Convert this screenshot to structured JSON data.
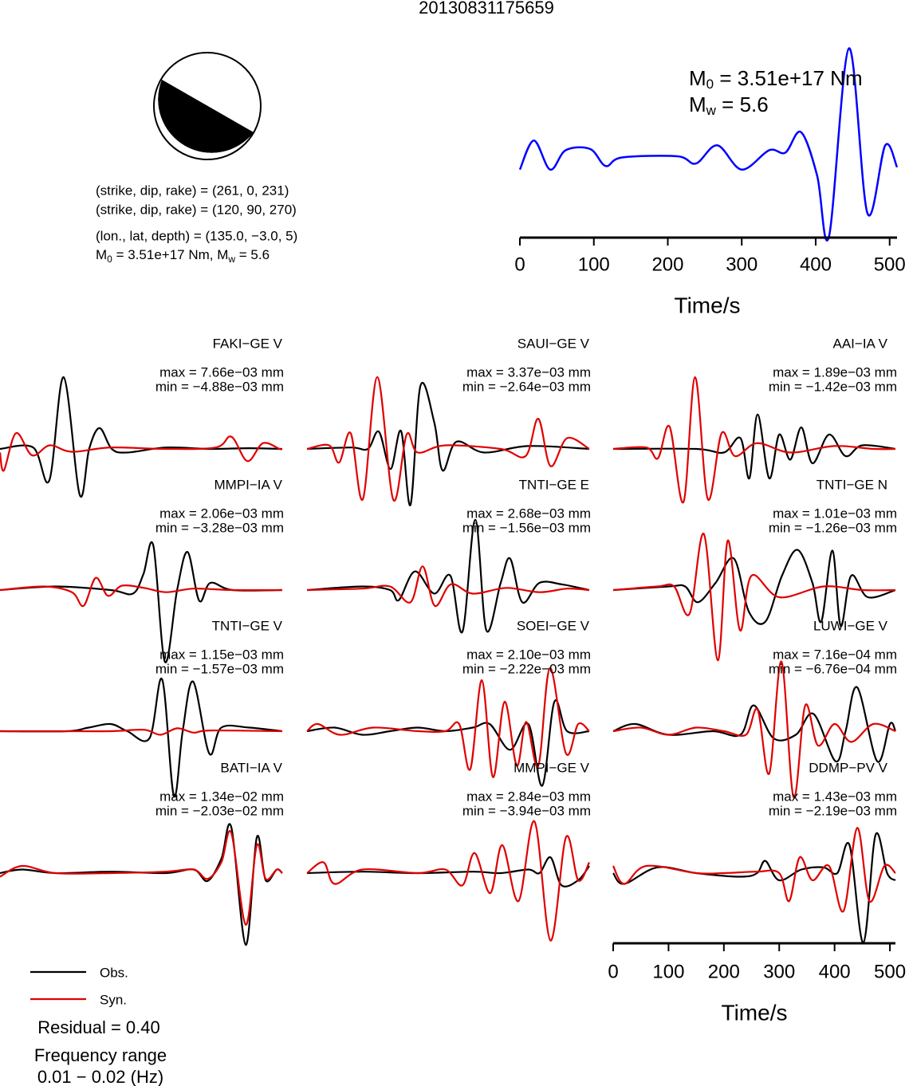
{
  "title": "20130831175659",
  "mechanism": {
    "lines": [
      "(strike, dip, rake) = (261, 0, 231)",
      "(strike, dip, rake) = (120, 90, 270)",
      "(lon., lat, depth) = (135.0, −3.0, 5)"
    ],
    "moment_parts": [
      "M",
      "0",
      " = 3.51e+17 Nm, M",
      "w",
      " = 5.6"
    ]
  },
  "chart_data": [
    {
      "type": "line",
      "annotation": [
        [
          "M",
          "0",
          " = 3.51e+17 Nm"
        ],
        [
          "M",
          "w",
          " = 5.6"
        ]
      ],
      "color": "#0000ff",
      "x": [
        0,
        19,
        41,
        62,
        95,
        116,
        138,
        213,
        238,
        267,
        300,
        337,
        359,
        380,
        402,
        418,
        445,
        470,
        494,
        510
      ],
      "values": [
        0,
        0.24,
        0,
        0.16,
        0.17,
        0.03,
        0.1,
        0.11,
        0.05,
        0.2,
        0,
        0.16,
        0.14,
        0.31,
        -0.05,
        -0.55,
        1.0,
        -0.36,
        0.2,
        0.02
      ],
      "xlim": [
        0,
        510
      ],
      "ylim": [
        -0.6,
        1.05
      ],
      "xticks": [
        0,
        100,
        200,
        300,
        400,
        500
      ],
      "xlabel": "Time/s"
    },
    {
      "type": "waveform",
      "xlim": [
        0,
        510
      ],
      "xticks": [
        0,
        100,
        200,
        300,
        400,
        500
      ],
      "xlabel": "Time/s",
      "ylim": [
        -1.5,
        1.5
      ],
      "legend": [
        {
          "name": "Obs.",
          "color": "#000000"
        },
        {
          "name": "Syn.",
          "color": "#e00000"
        }
      ],
      "residual": "Residual = 0.40",
      "frequency": [
        "Frequency range",
        "0.01 − 0.02 (Hz)"
      ],
      "panels": [
        {
          "station": "FAKI−GE V",
          "max": "max = 7.66e−03 mm",
          "min": "min = −4.88e−03 mm",
          "obs": {
            "x": [
              0,
              60,
              89,
              115,
              144,
              161,
              180,
              202,
              230,
              300,
              380,
              450,
              510
            ],
            "values": [
              0,
              0.02,
              -0.44,
              1.0,
              -0.64,
              0,
              0.29,
              0,
              -0.05,
              0.02,
              0,
              0.01,
              0
            ]
          },
          "syn": {
            "x": [
              0,
              7,
              29,
              58,
              90,
              130,
              200,
              300,
              390,
              418,
              447,
              475,
              505,
              510
            ],
            "values": [
              -0.05,
              -0.3,
              0.22,
              -0.09,
              0.05,
              -0.04,
              0.02,
              0,
              0.02,
              0.17,
              -0.17,
              0.08,
              0,
              0
            ]
          }
        },
        {
          "station": "SAUI−GE V",
          "max": "max = 3.37e−03 mm",
          "min": "min = −2.64e−03 mm",
          "obs": {
            "x": [
              0,
              80,
              110,
              130,
              151,
              170,
              187,
              205,
              230,
              245,
              270,
              320,
              400,
              510
            ],
            "values": [
              0,
              0.02,
              0,
              0.24,
              -0.28,
              0.25,
              -0.78,
              0.88,
              0.37,
              -0.3,
              0.1,
              -0.05,
              0.04,
              0
            ]
          },
          "syn": {
            "x": [
              0,
              40,
              58,
              79,
              101,
              127,
              156,
              180,
              200,
              250,
              350,
              395,
              418,
              440,
              470,
              510
            ],
            "values": [
              0,
              0.05,
              -0.19,
              0.22,
              -0.7,
              1.0,
              -0.71,
              0.2,
              -0.05,
              0.05,
              0,
              -0.1,
              0.42,
              -0.24,
              0.15,
              0
            ]
          }
        },
        {
          "station": "AAI−IA V",
          "max": "max = 1.89e−03 mm",
          "min": "min = −1.42e−03 mm",
          "obs": {
            "x": [
              0,
              150,
              200,
              230,
              246,
              261,
              282,
              300,
              320,
              340,
              360,
              390,
              420,
              450,
              510
            ],
            "values": [
              0,
              0,
              -0.05,
              0.15,
              -0.41,
              0.48,
              -0.41,
              0.2,
              -0.15,
              0.3,
              -0.2,
              0.2,
              -0.1,
              0.05,
              0
            ]
          },
          "syn": {
            "x": [
              0,
              60,
              81,
              102,
              127,
              148,
              171,
              196,
              220,
              260,
              320,
              400,
              470,
              510
            ],
            "values": [
              0,
              0.02,
              -0.13,
              0.31,
              -0.74,
              1.0,
              -0.7,
              0.22,
              -0.1,
              0.08,
              -0.05,
              0.04,
              0,
              0
            ]
          }
        },
        {
          "station": "MMPI−IA V",
          "max": "max = 2.06e−03 mm",
          "min": "min = −3.28e−03 mm",
          "obs": {
            "x": [
              0,
              100,
              200,
              240,
              259,
              277,
              298,
              320,
              339,
              360,
              380,
              420,
              510
            ],
            "values": [
              0,
              0.05,
              0,
              -0.05,
              0.22,
              0.62,
              -1.0,
              0,
              0.53,
              -0.15,
              0.1,
              0,
              0
            ]
          },
          "syn": {
            "x": [
              0,
              80,
              130,
              151,
              173,
              195,
              220,
              260,
              300,
              350,
              420,
              510
            ],
            "values": [
              0,
              0.05,
              -0.03,
              -0.22,
              0.17,
              -0.08,
              0.06,
              0.03,
              -0.03,
              0.02,
              0,
              0
            ]
          }
        },
        {
          "station": "TNTI−GE E",
          "max": "max = 2.68e−03 mm",
          "min": "min = −1.56e−03 mm",
          "obs": {
            "x": [
              0,
              100,
              150,
              166,
              195,
              230,
              259,
              281,
              304,
              324,
              350,
              367,
              389,
              420,
              460,
              510
            ],
            "values": [
              0,
              0.05,
              0,
              -0.14,
              0.26,
              -0.05,
              0.2,
              -0.58,
              0.98,
              -0.56,
              0.1,
              0.44,
              -0.17,
              0.1,
              0.08,
              0
            ]
          },
          "syn": {
            "x": [
              0,
              100,
              150,
              187,
              209,
              231,
              260,
              300,
              360,
              420,
              470,
              510
            ],
            "values": [
              0,
              0.02,
              0.05,
              -0.17,
              0.33,
              -0.22,
              0.08,
              -0.05,
              0.03,
              -0.03,
              0.02,
              0
            ]
          }
        },
        {
          "station": "TNTI−GE N",
          "max": "max = 1.01e−03 mm",
          "min": "min = −1.26e−03 mm",
          "obs": {
            "x": [
              0,
              100,
              130,
              153,
              185,
              218,
              245,
              275,
              305,
              333,
              360,
              376,
              396,
              411,
              430,
              460,
              510
            ],
            "values": [
              0,
              0.05,
              0.05,
              -0.17,
              0.1,
              0.44,
              -0.3,
              -0.44,
              0.2,
              0.56,
              0.1,
              -0.44,
              0.55,
              -0.5,
              0.2,
              -0.1,
              0
            ]
          },
          "syn": {
            "x": [
              0,
              80,
              110,
              138,
              164,
              189,
              207,
              229,
              250,
              300,
              380,
              450,
              510
            ],
            "values": [
              0,
              0.05,
              0.05,
              -0.33,
              0.78,
              -0.98,
              0.69,
              -0.56,
              0.2,
              -0.1,
              0.05,
              0,
              0
            ]
          }
        },
        {
          "station": "TNTI−GE V",
          "max": "max = 1.15e−03 mm",
          "min": "min = −1.57e−03 mm",
          "obs": {
            "x": [
              0,
              120,
              160,
              200,
              230,
              270,
              293,
              314,
              330,
              349,
              378,
              400,
              450,
              510
            ],
            "values": [
              0,
              0,
              0.05,
              0.1,
              0,
              -0.1,
              0.72,
              -0.9,
              0,
              0.69,
              -0.31,
              0.05,
              0.05,
              0
            ]
          },
          "syn": {
            "x": [
              0,
              100,
              200,
              260,
              290,
              320,
              350,
              380,
              510
            ],
            "values": [
              0,
              0,
              0,
              0.02,
              -0.05,
              0.04,
              -0.02,
              0.01,
              0
            ]
          }
        },
        {
          "station": "SOEI−GE V",
          "max": "max = 2.10e−03 mm",
          "min": "min = −2.22e−03 mm",
          "obs": {
            "x": [
              0,
              50,
              100,
              150,
              200,
              250,
              300,
              330,
              367,
              400,
              425,
              447,
              470,
              510
            ],
            "values": [
              0,
              0.05,
              -0.05,
              0,
              0.05,
              0,
              0.05,
              0.1,
              -0.26,
              0.1,
              -0.76,
              0.41,
              0,
              0
            ]
          },
          "syn": {
            "x": [
              0,
              20,
              60,
              120,
              200,
              250,
              275,
              295,
              316,
              336,
              357,
              379,
              396,
              418,
              439,
              468,
              490,
              510
            ],
            "values": [
              0,
              0.1,
              -0.05,
              0.05,
              0,
              0,
              0.1,
              -0.53,
              0.71,
              -0.64,
              0.41,
              -0.48,
              0.13,
              -0.48,
              0.88,
              -0.31,
              0.1,
              0
            ]
          }
        },
        {
          "station": "LUWI−GE V",
          "max": "max = 7.16e−04 mm",
          "min": "min = −6.76e−04 mm",
          "obs": {
            "x": [
              0,
              40,
              100,
              180,
              230,
              254,
              290,
              330,
              362,
              402,
              420,
              441,
              477,
              500,
              510
            ],
            "values": [
              0,
              0.1,
              -0.05,
              0,
              -0.05,
              0.36,
              -0.1,
              -0.05,
              0.24,
              -0.42,
              0,
              0.61,
              -0.42,
              0.1,
              0
            ]
          },
          "syn": {
            "x": [
              0,
              50,
              100,
              150,
              200,
              240,
              261,
              282,
              304,
              326,
              347,
              370,
              400,
              430,
              470,
              510
            ],
            "values": [
              0,
              0.05,
              -0.05,
              0.05,
              0,
              -0.05,
              0.3,
              -0.59,
              0.97,
              -0.92,
              0.36,
              -0.2,
              0.1,
              -0.15,
              0.1,
              0
            ]
          }
        },
        {
          "station": "BATI−IA V",
          "max": "max = 1.34e−02 mm",
          "min": "min = −2.03e−02 mm",
          "obs": {
            "x": [
              0,
              40,
              100,
              200,
              300,
              350,
              375,
              400,
              418,
              444,
              464,
              480,
              500,
              510
            ],
            "values": [
              0,
              0.05,
              0,
              0.02,
              0,
              0.05,
              -0.11,
              0.2,
              0.64,
              -1.0,
              0.5,
              -0.1,
              0.05,
              0
            ]
          },
          "syn": {
            "x": [
              0,
              40,
              100,
              200,
              300,
              350,
              375,
              400,
              418,
              444,
              464,
              480,
              500,
              510
            ],
            "values": [
              -0.05,
              0.1,
              0,
              0,
              0.02,
              0.05,
              -0.08,
              0.15,
              0.56,
              -0.72,
              0.39,
              -0.08,
              0.05,
              0
            ]
          }
        },
        {
          "station": "MMPI−GE V",
          "max": "max = 2.84e−03 mm",
          "min": "min = −3.94e−03 mm",
          "obs": {
            "x": [
              0,
              100,
              200,
              300,
              350,
              400,
              420,
              440,
              460,
              490,
              510
            ],
            "values": [
              0,
              0.02,
              0,
              0.02,
              0,
              0.05,
              0,
              0.22,
              -0.17,
              -0.1,
              0.1
            ]
          },
          "syn": {
            "x": [
              0,
              30,
              50,
              100,
              200,
              250,
              281,
              303,
              331,
              353,
              382,
              411,
              440,
              468,
              490,
              510
            ],
            "values": [
              0,
              0.15,
              -0.15,
              0.05,
              0,
              0.05,
              -0.17,
              0.28,
              -0.28,
              0.39,
              -0.39,
              0.72,
              -0.94,
              0.5,
              -0.1,
              0.15
            ]
          }
        },
        {
          "station": "DDMP−PV V",
          "max": "max = 1.43e−03 mm",
          "min": "min = −2.19e−03 mm",
          "obs": {
            "x": [
              0,
              20,
              80,
              150,
              230,
              260,
              275,
              300,
              340,
              380,
              405,
              427,
              452,
              474,
              495,
              510
            ],
            "values": [
              0,
              -0.15,
              0.08,
              0,
              -0.05,
              0,
              0.17,
              -0.1,
              0.05,
              0.08,
              0,
              0.39,
              -0.97,
              0.53,
              0,
              -0.1
            ]
          },
          "syn": {
            "x": [
              0,
              20,
              60,
              150,
              200,
              260,
              300,
              318,
              337,
              360,
              390,
              416,
              441,
              463,
              490,
              510
            ],
            "values": [
              0.1,
              -0.15,
              0.1,
              0,
              0,
              0.02,
              0,
              -0.39,
              0.22,
              -0.1,
              0.1,
              -0.53,
              0.63,
              -0.39,
              0.1,
              0
            ]
          }
        }
      ]
    }
  ]
}
